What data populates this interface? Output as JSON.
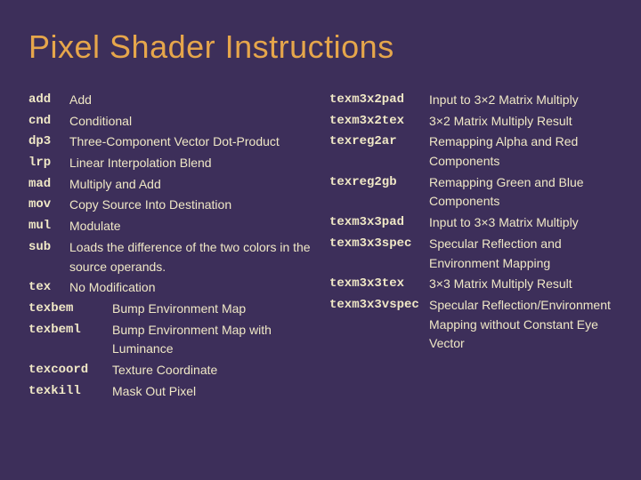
{
  "colors": {
    "background": "#3d2f5a",
    "title": "#e6a64b",
    "text": "#f0e8c6",
    "mnemonic": "#f0e8c6"
  },
  "title": "Pixel Shader Instructions",
  "left": [
    {
      "m": "add",
      "w": "w1",
      "d": "Add"
    },
    {
      "m": "cnd",
      "w": "w1",
      "d": "Conditional"
    },
    {
      "m": "dp3",
      "w": "w1",
      "d": "Three-Component Vector Dot-Product"
    },
    {
      "m": "lrp",
      "w": "w1",
      "d": "Linear Interpolation Blend"
    },
    {
      "m": "mad",
      "w": "w1",
      "d": "Multiply and Add"
    },
    {
      "m": "mov",
      "w": "w1",
      "d": "Copy Source Into Destination"
    },
    {
      "m": "mul",
      "w": "w1",
      "d": "Modulate"
    },
    {
      "m": "sub",
      "w": "w1",
      "d": "Loads the difference of the two colors in the source operands."
    },
    {
      "m": "tex",
      "w": "w1",
      "d": "No Modification"
    },
    {
      "m": "texbem",
      "w": "w2",
      "d": "Bump Environment Map"
    },
    {
      "m": "texbeml",
      "w": "w2",
      "d": "Bump Environment Map with Luminance"
    },
    {
      "m": "texcoord",
      "w": "w2",
      "d": "Texture Coordinate"
    },
    {
      "m": "texkill",
      "w": "w2",
      "d": "Mask Out Pixel"
    }
  ],
  "right": [
    {
      "m": "texm3x2pad",
      "w": "w3",
      "d": "Input to 3×2 Matrix Multiply"
    },
    {
      "m": "texm3x2tex",
      "w": "w3",
      "d": "3×2 Matrix Multiply Result"
    },
    {
      "m": "texreg2ar",
      "w": "w3",
      "d": "Remapping Alpha and Red Components"
    },
    {
      "m": "texreg2gb",
      "w": "w3",
      "d": "Remapping Green and Blue Components"
    },
    {
      "m": "texm3x3pad",
      "w": "w3",
      "d": "Input to 3×3 Matrix Multiply"
    },
    {
      "m": "texm3x3spec",
      "w": "w3",
      "d": "Specular Reflection and Environment Mapping"
    },
    {
      "m": "texm3x3tex",
      "w": "w3",
      "d": "3×3 Matrix Multiply Result"
    },
    {
      "m": "texm3x3vspec",
      "w": "w3",
      "d": "Specular Reflection/Environment Mapping without Constant Eye Vector"
    }
  ]
}
